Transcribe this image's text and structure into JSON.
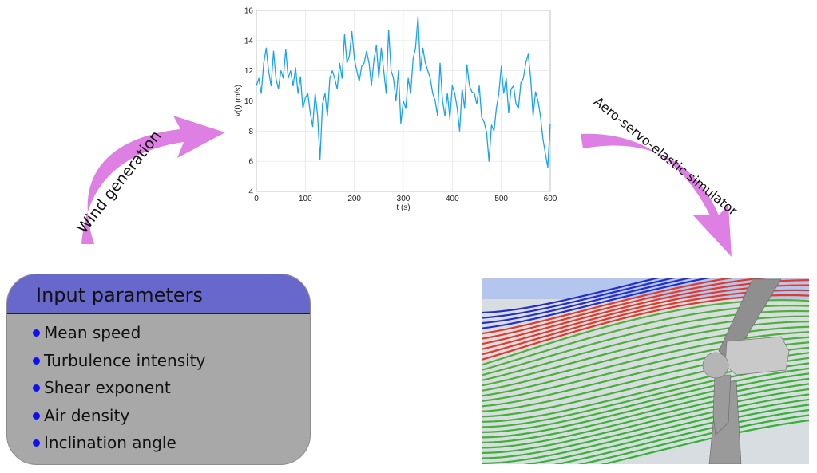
{
  "colors": {
    "arrow": "#dd7fe3",
    "series": "#1aa3f2",
    "header_bg": "#6767cc",
    "box_bg": "#a8a8a8",
    "bullet": "#1010ee",
    "sky": "#b4c6ee"
  },
  "arrows": {
    "left_label": "Wind generation",
    "right_label": "Aero-servo-elastic simulator"
  },
  "input_box": {
    "title": "Input parameters",
    "items": [
      "Mean speed",
      "Turbulence intensity",
      "Shear exponent",
      "Air density",
      "Inclination angle"
    ]
  },
  "simulation": {
    "image": "wind-turbine-streamline-render"
  },
  "chart_data": {
    "type": "line",
    "xlabel": "t (s)",
    "ylabel": "v(t) (m/s)",
    "xlim": [
      0,
      600
    ],
    "ylim": [
      4,
      16
    ],
    "x_ticks": [
      "0",
      "100",
      "200",
      "300",
      "400",
      "500",
      "600"
    ],
    "y_ticks": [
      "4",
      "6",
      "8",
      "10",
      "12",
      "14",
      "16"
    ],
    "grid": true,
    "series": [
      {
        "x": [
          0,
          5,
          10,
          15,
          20,
          25,
          30,
          35,
          40,
          45,
          50,
          55,
          60,
          65,
          70,
          75,
          80,
          85,
          90,
          95,
          100,
          105,
          110,
          115,
          120,
          125,
          130,
          135,
          140,
          145,
          150,
          155,
          160,
          165,
          170,
          175,
          180,
          185,
          190,
          195,
          200,
          205,
          210,
          215,
          220,
          225,
          230,
          235,
          240,
          245,
          250,
          255,
          260,
          265,
          270,
          275,
          280,
          285,
          290,
          295,
          300,
          305,
          310,
          315,
          320,
          325,
          330,
          335,
          340,
          345,
          350,
          355,
          360,
          365,
          370,
          375,
          380,
          385,
          390,
          395,
          400,
          405,
          410,
          415,
          420,
          425,
          430,
          435,
          440,
          445,
          450,
          455,
          460,
          465,
          470,
          475,
          480,
          485,
          490,
          495,
          500,
          505,
          510,
          515,
          520,
          525,
          530,
          535,
          540,
          545,
          550,
          555,
          560,
          565,
          570,
          575,
          580,
          585,
          590,
          595,
          600
        ],
        "values": [
          11,
          11.5,
          10.5,
          12.5,
          13.5,
          12,
          11,
          13.3,
          11.5,
          10.8,
          12,
          11.5,
          13.4,
          11.5,
          12,
          11,
          12.2,
          10.5,
          11.6,
          9.5,
          10.2,
          10.5,
          9.2,
          8.3,
          10.5,
          9,
          6.1,
          9.8,
          10.5,
          9,
          11.5,
          12,
          11.5,
          10.8,
          12.5,
          11.5,
          14.4,
          12.5,
          13,
          14.6,
          12.8,
          12,
          11.3,
          12.3,
          12.5,
          13.3,
          12.5,
          11,
          12.7,
          13.7,
          11.5,
          13.5,
          12,
          10.5,
          14.7,
          12,
          11.5,
          10,
          12,
          8.5,
          10,
          9.5,
          11.5,
          10.5,
          12.8,
          13.5,
          15.6,
          12,
          13.5,
          12.5,
          12,
          11.5,
          10.5,
          10,
          9,
          12.5,
          10,
          9,
          10.5,
          8.8,
          11,
          10.5,
          9.5,
          8,
          10.8,
          9.5,
          12.4,
          11,
          10.6,
          10.5,
          9.8,
          11,
          8.9,
          8.6,
          7.9,
          6,
          8.4,
          8,
          9.5,
          10.5,
          12.3,
          10.5,
          11.5,
          9.2,
          10.8,
          11,
          9.8,
          9.5,
          11.2,
          11.5,
          12.5,
          13.1,
          11.5,
          9,
          10.6,
          10,
          9,
          7.5,
          6.5,
          5.6,
          8.5
        ]
      }
    ]
  }
}
